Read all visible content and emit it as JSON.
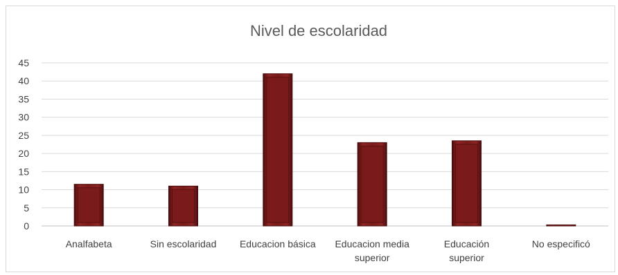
{
  "chart_data": {
    "type": "bar",
    "title": "Nivel de escolaridad",
    "categories": [
      [
        "Analfabeta"
      ],
      [
        "Sin escolaridad"
      ],
      [
        "Educacion básica"
      ],
      [
        "Educacion media",
        "superior"
      ],
      [
        "Educación",
        "superior"
      ],
      [
        "No especificó"
      ]
    ],
    "values": [
      11.5,
      11,
      42,
      23,
      23.5,
      0.3
    ],
    "yticks": [
      0,
      5,
      10,
      15,
      20,
      25,
      30,
      35,
      40,
      45
    ],
    "ylim": [
      0,
      45
    ],
    "xlabel": "",
    "ylabel": "",
    "grid": true,
    "legend": "none",
    "bar_color": "#7a1a1a",
    "bar_edge_color": "#4a0c0c"
  }
}
